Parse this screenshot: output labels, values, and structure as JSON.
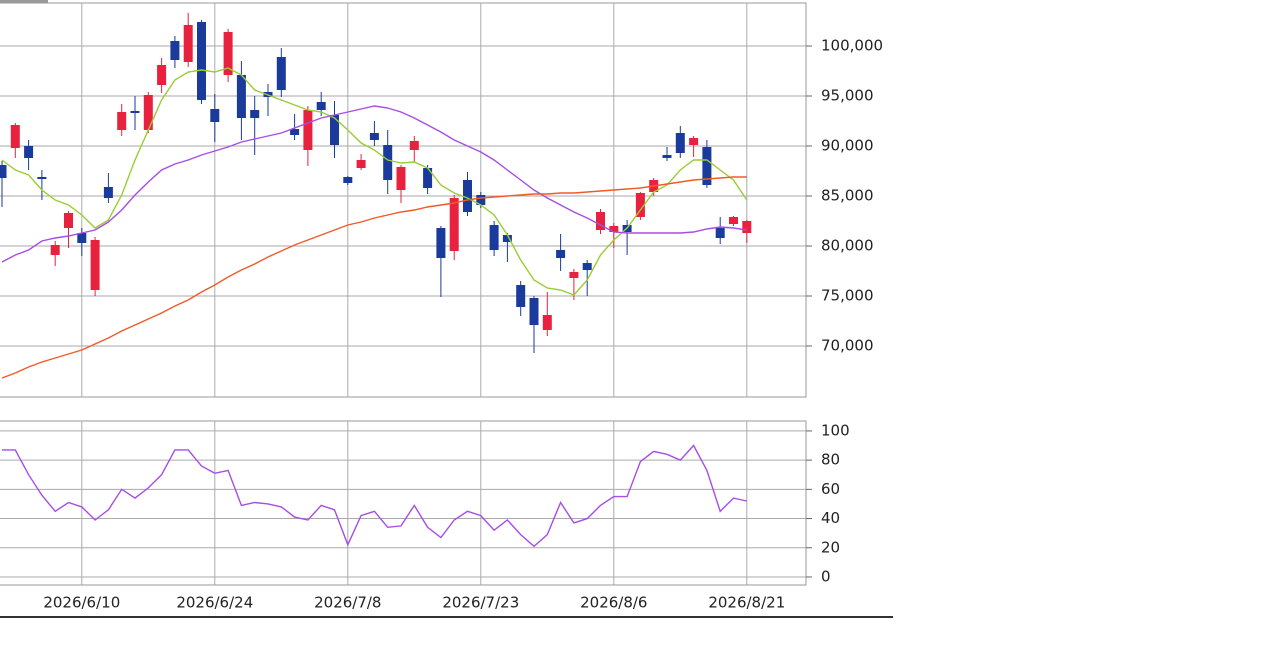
{
  "chart_data": [
    {
      "type": "candlestick",
      "categories": [
        null,
        null,
        null,
        null,
        null,
        null,
        "2026/6/10",
        null,
        null,
        null,
        null,
        null,
        null,
        null,
        null,
        null,
        "2026/6/24",
        null,
        null,
        null,
        null,
        null,
        null,
        null,
        null,
        null,
        "2026/7/8",
        null,
        null,
        null,
        null,
        null,
        null,
        null,
        null,
        null,
        "2026/7/23",
        null,
        null,
        null,
        null,
        null,
        null,
        null,
        null,
        null,
        "2026/8/6",
        null,
        null,
        null,
        null,
        null,
        null,
        null,
        null,
        null,
        "2026/8/21"
      ],
      "open": [
        88100,
        89800,
        90000,
        86900,
        79100,
        81800,
        81300,
        75600,
        85900,
        91600,
        93500,
        91600,
        96100,
        100500,
        98400,
        102400,
        93700,
        97100,
        97100,
        93600,
        95400,
        98900,
        91700,
        89600,
        94400,
        93100,
        86900,
        87800,
        91300,
        90100,
        85600,
        89600,
        87800,
        81800,
        79500,
        86600,
        85100,
        82100,
        81100,
        76100,
        74800,
        71600,
        79600,
        76800,
        78300,
        81600,
        81400,
        82100,
        82900,
        85400,
        89100,
        91300,
        90100,
        89900,
        81800,
        82200,
        81300
      ],
      "high": [
        88500,
        92300,
        90600,
        87600,
        80500,
        83500,
        81800,
        80900,
        87300,
        94200,
        95000,
        95400,
        98800,
        101000,
        103300,
        102600,
        95200,
        101700,
        98500,
        95000,
        96200,
        99800,
        93200,
        94000,
        95400,
        94500,
        87000,
        89200,
        92500,
        91600,
        88100,
        91000,
        88100,
        82000,
        85100,
        87400,
        85400,
        82500,
        81300,
        76500,
        75000,
        75400,
        81200,
        77700,
        78600,
        83700,
        82300,
        82600,
        85400,
        86800,
        89900,
        92000,
        91000,
        90600,
        82900,
        83000,
        82600
      ],
      "low": [
        83900,
        88800,
        87600,
        84600,
        78000,
        79800,
        79000,
        75000,
        84300,
        91000,
        91600,
        91300,
        95300,
        97800,
        97900,
        94200,
        90400,
        96400,
        90600,
        89100,
        93000,
        94900,
        90600,
        88000,
        93000,
        88800,
        86100,
        87600,
        90000,
        85200,
        84300,
        88400,
        85200,
        74900,
        78600,
        83000,
        83800,
        79000,
        78400,
        73000,
        69300,
        71000,
        77500,
        74600,
        75000,
        81200,
        79800,
        79100,
        82600,
        85000,
        88500,
        88800,
        88900,
        85800,
        80200,
        82000,
        80300
      ],
      "close": [
        86800,
        92100,
        88800,
        86700,
        80100,
        83300,
        80300,
        80600,
        84800,
        93400,
        93300,
        95100,
        98100,
        98600,
        102100,
        94600,
        92400,
        101400,
        92800,
        92800,
        94900,
        95600,
        91100,
        93600,
        93600,
        90100,
        86300,
        88600,
        90600,
        86600,
        87900,
        90500,
        85800,
        78800,
        84800,
        83400,
        84100,
        79600,
        80400,
        73900,
        72100,
        73100,
        78800,
        77400,
        77600,
        83400,
        82000,
        81400,
        85300,
        86600,
        88800,
        89300,
        90800,
        86100,
        80800,
        82900,
        82500
      ],
      "up_color": "#e8213f",
      "down_color": "#1a3a9c",
      "series": [
        {
          "color": "#9acd32",
          "values": [
            88600,
            87600,
            87100,
            85600,
            84600,
            84100,
            83100,
            81800,
            82600,
            85100,
            88600,
            91600,
            94600,
            96600,
            97400,
            97600,
            97400,
            97800,
            97100,
            95600,
            95100,
            94600,
            94100,
            93600,
            93400,
            92800,
            91600,
            90300,
            89600,
            88600,
            88300,
            88400,
            87800,
            86100,
            85300,
            84800,
            84100,
            83100,
            81100,
            78600,
            76600,
            75800,
            75600,
            75100,
            76600,
            79100,
            80600,
            81800,
            83600,
            85400,
            86100,
            87600,
            88600,
            88600,
            87600,
            86600,
            84600
          ]
        },
        {
          "color": "#a64de6",
          "values": [
            78400,
            79100,
            79600,
            80500,
            80800,
            81000,
            81300,
            81600,
            82400,
            83600,
            85100,
            86400,
            87600,
            88200,
            88600,
            89100,
            89500,
            89900,
            90400,
            90700,
            91000,
            91300,
            91800,
            92300,
            92800,
            93100,
            93400,
            93700,
            94000,
            93800,
            93400,
            92800,
            92100,
            91400,
            90600,
            90000,
            89400,
            88600,
            87600,
            86600,
            85600,
            84800,
            84100,
            83400,
            82800,
            82100,
            81400,
            81300,
            81300,
            81300,
            81300,
            81300,
            81400,
            81700,
            81900,
            81800,
            81600
          ]
        },
        {
          "color": "#f05a28",
          "values": [
            66800,
            67300,
            67900,
            68400,
            68800,
            69200,
            69600,
            70200,
            70800,
            71500,
            72100,
            72700,
            73300,
            74000,
            74600,
            75400,
            76100,
            76900,
            77600,
            78200,
            78900,
            79500,
            80100,
            80600,
            81100,
            81600,
            82100,
            82400,
            82800,
            83100,
            83400,
            83600,
            83900,
            84100,
            84300,
            84600,
            84800,
            84900,
            85000,
            85100,
            85200,
            85200,
            85300,
            85300,
            85400,
            85500,
            85600,
            85700,
            85800,
            86000,
            86200,
            86400,
            86600,
            86700,
            86800,
            86900,
            86900
          ]
        }
      ],
      "ylim": [
        64900,
        104300
      ],
      "yticks": [
        {
          "value": 70000,
          "label": "70,000"
        },
        {
          "value": 75000,
          "label": "75,000"
        },
        {
          "value": 80000,
          "label": "80,000"
        },
        {
          "value": 85000,
          "label": "85,000"
        },
        {
          "value": 90000,
          "label": "90,000"
        },
        {
          "value": 95000,
          "label": "95,000"
        },
        {
          "value": 100000,
          "label": "100,000"
        }
      ],
      "grid": true
    },
    {
      "type": "line",
      "series": [
        {
          "color": "#a64de6",
          "values": [
            87,
            87,
            70,
            56,
            45,
            51,
            48,
            39,
            46,
            60,
            54,
            61,
            70,
            87,
            87,
            76,
            71,
            73,
            49,
            51,
            50,
            48,
            41,
            39,
            49,
            46,
            22,
            42,
            45,
            34,
            35,
            49,
            34,
            27,
            39,
            45,
            42,
            32,
            39,
            29,
            21,
            29,
            51,
            37,
            40,
            49,
            55,
            55,
            79,
            86,
            84,
            80,
            90,
            73,
            45,
            54,
            52
          ]
        }
      ],
      "ylim": [
        -5.5,
        106.8
      ],
      "yticks": [
        0,
        20,
        40,
        60,
        80,
        100
      ],
      "grid": true
    }
  ]
}
